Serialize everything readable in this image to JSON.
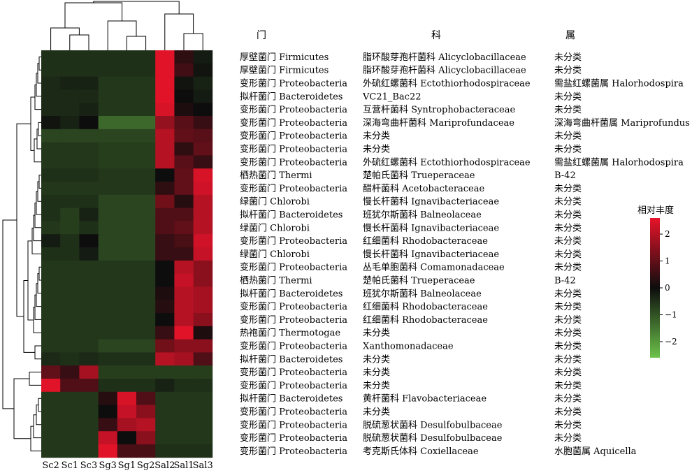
{
  "chart_data": {
    "type": "heatmap",
    "columns": [
      "Sc2",
      "Sc1",
      "Sc3",
      "Sg3",
      "Sg1",
      "Sg2",
      "Sal2",
      "Sal1",
      "Sal3"
    ],
    "headers": {
      "phylum": "门",
      "family": "科",
      "genus": "属"
    },
    "legend": {
      "title": "相对丰度",
      "ticks": [
        2,
        1,
        0,
        -1,
        -2
      ],
      "range": [
        -2.6,
        2.6
      ],
      "colors": {
        "low": "#6cc24a",
        "mid": "#0d0d0d",
        "high": "#e8132a"
      }
    },
    "rows": [
      {
        "phylum": "厚壁菌门 Firmicutes",
        "family": "脂环酸芽孢杆菌科 Alicyclobacillaceae",
        "genus": "未分类",
        "values": [
          -0.5,
          -0.5,
          -0.5,
          -0.5,
          -0.5,
          -0.5,
          2.5,
          0.4,
          -0.2
        ]
      },
      {
        "phylum": "厚壁菌门 Firmicutes",
        "family": "脂环酸芽孢杆菌科 Alicyclobacillaceae",
        "genus": "未分类",
        "values": [
          -0.5,
          -0.5,
          -0.5,
          -0.5,
          -0.5,
          -0.5,
          2.5,
          0.6,
          -0.1
        ]
      },
      {
        "phylum": "变形菌门 Proteobacteria",
        "family": "外硫红螺菌科 Ectothiorhodospiraceae",
        "genus": "需盐红螺菌属 Halorhodospira",
        "values": [
          -0.4,
          -0.3,
          -0.3,
          -0.6,
          -0.6,
          -0.6,
          2.5,
          -0.1,
          -0.3
        ]
      },
      {
        "phylum": "拟杆菌门 Bacteroidetes",
        "family": "VC21_Bac22",
        "genus": "未分类",
        "values": [
          -0.4,
          -0.4,
          -0.4,
          -0.6,
          -0.6,
          -0.6,
          2.5,
          0.0,
          -0.2
        ]
      },
      {
        "phylum": "变形菌门 Proteobacteria",
        "family": "互营杆菌科 Syntrophobacteraceae",
        "genus": "未分类",
        "values": [
          -0.4,
          -0.4,
          -0.3,
          -0.6,
          -0.6,
          -0.6,
          2.4,
          0.2,
          0.0
        ]
      },
      {
        "phylum": "变形菌门 Proteobacteria",
        "family": "深海弯曲杆菌科 Mariprofundaceae",
        "genus": "深海弯曲杆菌属 Mariprofundus",
        "values": [
          -0.1,
          -0.3,
          0.0,
          -1.3,
          -1.3,
          -1.3,
          1.6,
          0.9,
          0.5
        ]
      },
      {
        "phylum": "变形菌门 Proteobacteria",
        "family": "未分类",
        "genus": "未分类",
        "values": [
          -0.8,
          -0.8,
          -0.8,
          -0.8,
          -0.8,
          -0.8,
          2.0,
          1.0,
          0.9
        ]
      },
      {
        "phylum": "变形菌门 Proteobacteria",
        "family": "未分类",
        "genus": "未分类",
        "values": [
          -0.6,
          -0.6,
          -0.6,
          -0.7,
          -0.7,
          -0.7,
          2.0,
          0.4,
          1.0
        ]
      },
      {
        "phylum": "变形菌门 Proteobacteria",
        "family": "外硫红螺菌科 Ectothiorhodospiraceae",
        "genus": "需盐红螺菌属 Halorhodospira",
        "values": [
          -0.6,
          -0.6,
          -0.6,
          -0.7,
          -0.7,
          -0.7,
          2.0,
          0.9,
          0.5
        ]
      },
      {
        "phylum": "栖热菌门 Thermi",
        "family": "楚帕氏菌科 Trueperaceae",
        "genus": "B-42",
        "values": [
          -0.5,
          -0.5,
          -0.5,
          -0.6,
          -0.6,
          -0.6,
          0.0,
          1.0,
          2.4
        ]
      },
      {
        "phylum": "变形菌门 Proteobacteria",
        "family": "醋杆菌科 Acetobacteraceae",
        "genus": "未分类",
        "values": [
          -0.6,
          -0.6,
          -0.6,
          -0.6,
          -0.6,
          -0.6,
          0.4,
          1.0,
          2.3
        ]
      },
      {
        "phylum": "绿菌门 Chlorobi",
        "family": "慢长杆菌科 Ignavibacteriaceae",
        "genus": "未分类",
        "values": [
          -0.5,
          -0.5,
          -0.5,
          -0.8,
          -0.8,
          -0.8,
          1.2,
          0.3,
          2.0
        ]
      },
      {
        "phylum": "拟杆菌门 Bacteroidetes",
        "family": "班犹尔斯菌科 Balneolaceae",
        "genus": "未分类",
        "values": [
          -0.5,
          -0.7,
          -0.3,
          -0.8,
          -0.8,
          -0.8,
          0.8,
          0.8,
          2.0
        ]
      },
      {
        "phylum": "绿菌门 Chlorobi",
        "family": "慢长杆菌科 Ignavibacteriaceae",
        "genus": "未分类",
        "values": [
          -0.6,
          -0.7,
          -0.5,
          -0.8,
          -0.8,
          -0.8,
          0.8,
          1.0,
          2.0
        ]
      },
      {
        "phylum": "变形菌门 Proteobacteria",
        "family": "红细菌科 Rhodobacteraceae",
        "genus": "未分类",
        "values": [
          -0.2,
          -0.5,
          0.0,
          -0.8,
          -0.8,
          -0.8,
          0.5,
          0.7,
          2.3
        ]
      },
      {
        "phylum": "绿菌门 Chlorobi",
        "family": "慢长杆菌科 Ignavibacteriaceae",
        "genus": "未分类",
        "values": [
          -0.5,
          -0.5,
          -0.2,
          -0.8,
          -0.8,
          -0.8,
          0.5,
          0.5,
          2.2
        ]
      },
      {
        "phylum": "变形菌门 Proteobacteria",
        "family": "丛毛单胞菌科 Comamonadaceae",
        "genus": "未分类",
        "values": [
          -0.6,
          -0.6,
          -0.6,
          -0.6,
          -0.6,
          -0.6,
          0.0,
          2.0,
          1.5
        ]
      },
      {
        "phylum": "栖热菌门 Thermi",
        "family": "楚帕氏菌科 Trueperaceae",
        "genus": "B-42",
        "values": [
          -0.6,
          -0.6,
          -0.6,
          -0.6,
          -0.6,
          -0.6,
          0.0,
          2.2,
          1.5
        ]
      },
      {
        "phylum": "拟杆菌门 Bacteroidetes",
        "family": "班犹尔斯菌科 Balneolaceae",
        "genus": "未分类",
        "values": [
          -0.6,
          -0.6,
          -0.6,
          -0.6,
          -0.6,
          -0.6,
          0.2,
          2.0,
          1.8
        ]
      },
      {
        "phylum": "变形菌门 Proteobacteria",
        "family": "红细菌科 Rhodobacteraceae",
        "genus": "未分类",
        "values": [
          -0.6,
          -0.6,
          -0.6,
          -0.6,
          -0.6,
          -0.6,
          0.3,
          2.0,
          1.8
        ]
      },
      {
        "phylum": "变形菌门 Proteobacteria",
        "family": "红细菌科 Rhodobacteraceae",
        "genus": "未分类",
        "values": [
          -0.6,
          -0.6,
          -0.6,
          -0.6,
          -0.6,
          -0.6,
          0.0,
          2.0,
          1.5
        ]
      },
      {
        "phylum": "热袍菌门 Thermotogae",
        "family": "未分类",
        "genus": "未分类",
        "values": [
          -0.6,
          -0.6,
          -0.6,
          -0.6,
          -0.6,
          -0.6,
          0.5,
          2.5,
          0.2
        ]
      },
      {
        "phylum": "变形菌门 Proteobacteria",
        "family": "Xanthomonadaceae",
        "genus": "未分类",
        "values": [
          -0.6,
          -0.6,
          -0.6,
          -0.8,
          -0.8,
          -0.8,
          1.2,
          1.5,
          1.5
        ]
      },
      {
        "phylum": "拟杆菌门 Bacteroidetes",
        "family": "未分类",
        "genus": "未分类",
        "values": [
          -0.4,
          -0.5,
          -0.4,
          -0.5,
          -0.5,
          -0.5,
          2.0,
          1.8,
          0.8
        ]
      },
      {
        "phylum": "变形菌门 Proteobacteria",
        "family": "未分类",
        "genus": "未分类",
        "values": [
          1.0,
          0.5,
          1.8,
          -0.7,
          -0.7,
          -0.7,
          -0.7,
          -0.7,
          -0.7
        ]
      },
      {
        "phylum": "变形菌门 Proteobacteria",
        "family": "未分类",
        "genus": "未分类",
        "values": [
          2.5,
          0.8,
          0.8,
          -0.5,
          -0.5,
          -0.5,
          -0.3,
          -0.5,
          -0.5
        ]
      },
      {
        "phylum": "拟杆菌门 Bacteroidetes",
        "family": "黄杆菌科 Flavobacteriaceae",
        "genus": "未分类",
        "values": [
          -0.6,
          -0.6,
          -0.6,
          0.3,
          2.4,
          0.8,
          -0.6,
          -0.6,
          -0.6
        ]
      },
      {
        "phylum": "变形菌门 Proteobacteria",
        "family": "未分类",
        "genus": "未分类",
        "values": [
          -0.6,
          -0.6,
          -0.6,
          0.0,
          2.2,
          1.5,
          -0.6,
          -0.6,
          -0.6
        ]
      },
      {
        "phylum": "变形菌门 Proteobacteria",
        "family": "脱硫葱状菌科 Desulfobulbaceae",
        "genus": "未分类",
        "values": [
          -0.6,
          -0.6,
          -0.6,
          0.5,
          1.8,
          2.0,
          -0.6,
          -0.6,
          -0.6
        ]
      },
      {
        "phylum": "变形菌门 Proteobacteria",
        "family": "脱硫葱状菌科 Desulfobulbaceae",
        "genus": "未分类",
        "values": [
          -0.6,
          -0.6,
          -0.6,
          2.2,
          0.0,
          1.5,
          -0.6,
          -0.6,
          -0.6
        ]
      },
      {
        "phylum": "变形菌门 Proteobacteria",
        "family": "考克斯氏体科 Coxiellaceae",
        "genus": "水胞菌属 Aquicella",
        "values": [
          -0.6,
          -0.6,
          -0.6,
          2.5,
          0.7,
          0.7,
          -0.5,
          -0.5,
          -0.5
        ]
      }
    ]
  }
}
